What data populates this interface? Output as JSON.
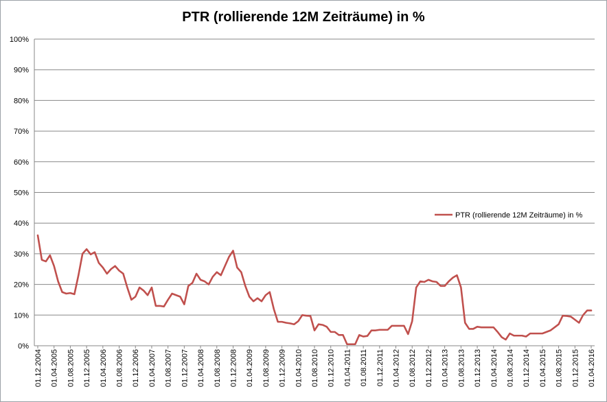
{
  "chart_data": {
    "type": "line",
    "title": "PTR (rollierende 12M Zeiträume) in %",
    "legend_position": "right",
    "grid": true,
    "ylim": [
      0,
      100
    ],
    "y_ticks": [
      "0%",
      "10%",
      "20%",
      "30%",
      "40%",
      "50%",
      "60%",
      "70%",
      "80%",
      "90%",
      "100%"
    ],
    "x_tick_labels": [
      "01.12.2004",
      "01.04.2005",
      "01.08.2005",
      "01.12.2005",
      "01.04.2006",
      "01.08.2006",
      "01.12.2006",
      "01.04.2007",
      "01.08.2007",
      "01.12.2007",
      "01.04.2008",
      "01.08.2008",
      "01.12.2008",
      "01.04.2009",
      "01.08.2009",
      "01.12.2009",
      "01.04.2010",
      "01.08.2010",
      "01.12.2010",
      "01.04.2011",
      "01.08.2011",
      "01.12.2011",
      "01.04.2012",
      "01.08.2012",
      "01.12.2012",
      "01.04.2013",
      "01.08.2013",
      "01.12.2013",
      "01.04.2014",
      "01.08.2014",
      "01.12.2014",
      "01.04.2015",
      "01.08.2015",
      "01.12.2015",
      "01.04.2016"
    ],
    "series": [
      {
        "name": "PTR (rollierende 12M Zeiträume) in %",
        "color": "#c0504d",
        "start": "01.12.2004",
        "interval": "monthly",
        "values": [
          36,
          28,
          27.5,
          29.5,
          26,
          21,
          17.5,
          17,
          17.2,
          16.8,
          23,
          30,
          31.5,
          29.8,
          30.5,
          27,
          25.5,
          23.5,
          25,
          26,
          24.5,
          23.5,
          19,
          15,
          16,
          19,
          18,
          16.5,
          19,
          13,
          13,
          12.8,
          15,
          17,
          16.5,
          16,
          13.5,
          19.5,
          20.5,
          23.5,
          21.5,
          21,
          20,
          22.5,
          24,
          23,
          26,
          29,
          31,
          25.5,
          24,
          19.5,
          16,
          14.5,
          15.5,
          14.5,
          16.5,
          17.5,
          12,
          7.8,
          7.8,
          7.5,
          7.3,
          7,
          8,
          10,
          9.8,
          9.7,
          5,
          7,
          6.8,
          6.2,
          4.5,
          4.5,
          3.5,
          3.5,
          0.5,
          0.5,
          0.5,
          3.5,
          3,
          3.2,
          5,
          5,
          5.2,
          5.2,
          5.2,
          6.5,
          6.5,
          6.5,
          6.5,
          3.8,
          8,
          19,
          21,
          20.8,
          21.5,
          21,
          20.8,
          19.5,
          19.5,
          21,
          22.2,
          23,
          19,
          7.5,
          5.5,
          5.5,
          6.2,
          6,
          6,
          6,
          6,
          4.5,
          2.8,
          2,
          4,
          3.3,
          3.3,
          3.3,
          3,
          4,
          4,
          4,
          4,
          4.5,
          5,
          6,
          7,
          9.8,
          9.7,
          9.5,
          8.5,
          7.5,
          10,
          11.5,
          11.5
        ]
      }
    ]
  }
}
